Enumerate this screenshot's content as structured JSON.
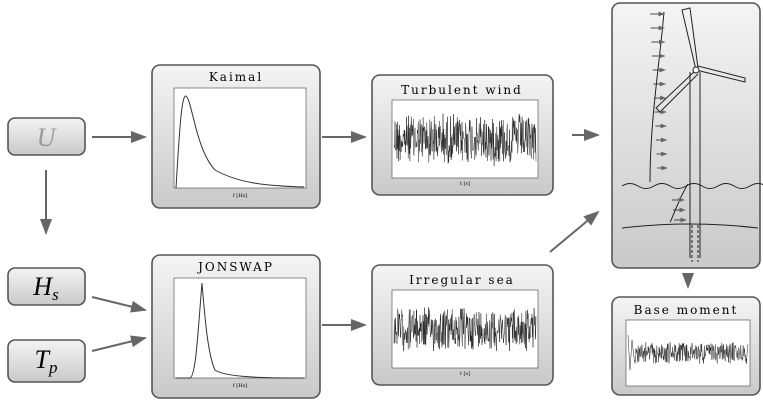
{
  "inputs": [
    {
      "label": "U"
    },
    {
      "label": "H",
      "subscript": "s"
    },
    {
      "label": "T",
      "subscript": "p"
    }
  ],
  "spectra": [
    {
      "title": "Kaimal",
      "x_label": "f [Hz]"
    },
    {
      "title": "JONSWAP",
      "x_label": "f [Hz]"
    }
  ],
  "signals": [
    {
      "title": "Turbulent wind",
      "x_label": "t [s]"
    },
    {
      "title": "Irregular sea",
      "x_label": "t [s]"
    }
  ],
  "output": {
    "title": "Base moment"
  }
}
